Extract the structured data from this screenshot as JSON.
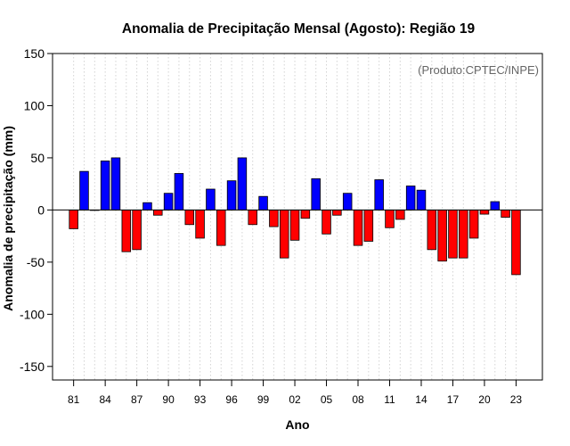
{
  "chart_data": {
    "type": "bar",
    "title": "Anomalia de Precipitação Mensal (Agosto): Região 19",
    "xlabel": "Ano",
    "ylabel": "Anomalia de precipitação (mm)",
    "annotation": "(Produto:CPTEC/INPE)",
    "ylim": [
      -163,
      150
    ],
    "yticks": [
      -150,
      -100,
      -50,
      0,
      50,
      100,
      150
    ],
    "xtick_labels": [
      "81",
      "84",
      "87",
      "90",
      "93",
      "96",
      "99",
      "02",
      "05",
      "08",
      "11",
      "14",
      "17",
      "20",
      "23"
    ],
    "xtick_step": 3,
    "grid": "vertical dotted",
    "colors": {
      "positive": "#0000ff",
      "negative": "#ff0000",
      "grid": "#d3d3d3",
      "credit": "#666666"
    },
    "categories": [
      "1981",
      "1982",
      "1983",
      "1984",
      "1985",
      "1986",
      "1987",
      "1988",
      "1989",
      "1990",
      "1991",
      "1992",
      "1993",
      "1994",
      "1995",
      "1996",
      "1997",
      "1998",
      "1999",
      "2000",
      "2001",
      "2002",
      "2003",
      "2004",
      "2005",
      "2006",
      "2007",
      "2008",
      "2009",
      "2010",
      "2011",
      "2012",
      "2013",
      "2014",
      "2015",
      "2016",
      "2017",
      "2018",
      "2019",
      "2020",
      "2021",
      "2022",
      "2023"
    ],
    "values": [
      -18,
      37,
      0,
      47,
      50,
      -40,
      -38,
      7,
      -5,
      16,
      35,
      -14,
      -27,
      20,
      -34,
      28,
      50,
      -14,
      13,
      -16,
      -46,
      -29,
      -8,
      30,
      -23,
      -5,
      16,
      -34,
      -30,
      29,
      -17,
      -9,
      23,
      19,
      -38,
      -49,
      -46,
      -46,
      -27,
      -4,
      8,
      -7,
      -62
    ]
  }
}
